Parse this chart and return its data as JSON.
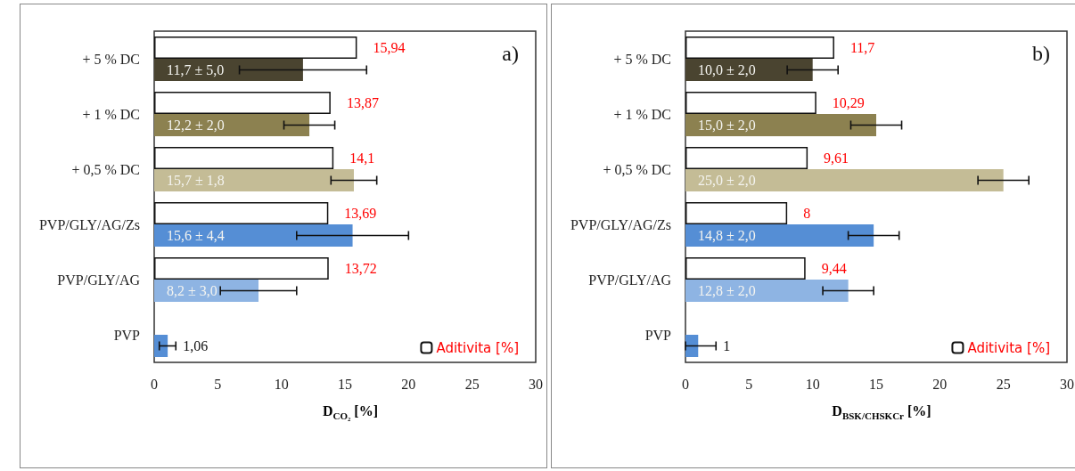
{
  "chart_data": [
    {
      "type": "bar",
      "orientation": "horizontal",
      "title": "a)",
      "xlabel": "D$_{CO₂}$ [%]",
      "categories": [
        "+ 5 % DC",
        "+ 1 % DC",
        "+ 0,5 % DC",
        "PVP/GLY/AG/Zs",
        "PVP/GLY/AG",
        "PVP"
      ],
      "xlim": [
        0,
        30
      ],
      "xticks": [
        0,
        5,
        10,
        15,
        20,
        25,
        30
      ],
      "grid": false,
      "legend": "bottom right",
      "series": [
        {
          "name": "Aditivita [%]",
          "color": "#ffffff",
          "values": [
            15.94,
            13.87,
            14.1,
            13.69,
            13.72,
            null
          ],
          "value_labels": [
            "15,94",
            "13,87",
            "14,1",
            "13,69",
            "13,72",
            null
          ]
        },
        {
          "colors": [
            "#4a4430",
            "#8c8150",
            "#c4bc96",
            "#558ed5",
            "#8eb4e3",
            "#558ed5"
          ],
          "values": [
            11.7,
            12.2,
            15.7,
            15.6,
            8.2,
            1.06
          ],
          "errors": [
            5.0,
            2.0,
            1.8,
            4.4,
            3.0,
            [
              0.4,
              1.7
            ]
          ],
          "value_labels": [
            "11,7 ± 5,0",
            "12,2 ± 2,0",
            "15,7 ± 1,8",
            "15,6 ± 4,4",
            "8,2 ± 3,0",
            "1,06"
          ]
        }
      ]
    },
    {
      "type": "bar",
      "orientation": "horizontal",
      "title": "b)",
      "xlabel": "D$_{BSK/CHSK}$$_{Cr}$ [%]",
      "categories": [
        "+ 5 % DC",
        "+ 1 % DC",
        "+ 0,5 % DC",
        "PVP/GLY/AG/Zs",
        "PVP/GLY/AG",
        "PVP"
      ],
      "xlim": [
        0,
        30
      ],
      "xticks": [
        0,
        5,
        10,
        15,
        20,
        25,
        30
      ],
      "grid": false,
      "legend": "bottom right",
      "series": [
        {
          "name": "Aditivita [%]",
          "color": "#ffffff",
          "values": [
            11.7,
            10.29,
            9.61,
            8,
            9.44,
            null
          ],
          "value_labels": [
            "11,7",
            "10,29",
            "9,61",
            "8",
            "9,44",
            null
          ]
        },
        {
          "colors": [
            "#4a4430",
            "#8c8150",
            "#c4bc96",
            "#558ed5",
            "#8eb4e3",
            "#558ed5"
          ],
          "values": [
            10.0,
            15.0,
            25.0,
            14.8,
            12.8,
            1
          ],
          "errors": [
            2.0,
            2.0,
            2.0,
            2.0,
            2.0,
            [
              0,
              2.4
            ]
          ],
          "value_labels": [
            "10,0 ± 2,0",
            "15,0 ± 2,0",
            "25,0 ± 2,0",
            "14,8 ± 2,0",
            "12,8 ± 2,0",
            "1"
          ]
        }
      ]
    }
  ]
}
